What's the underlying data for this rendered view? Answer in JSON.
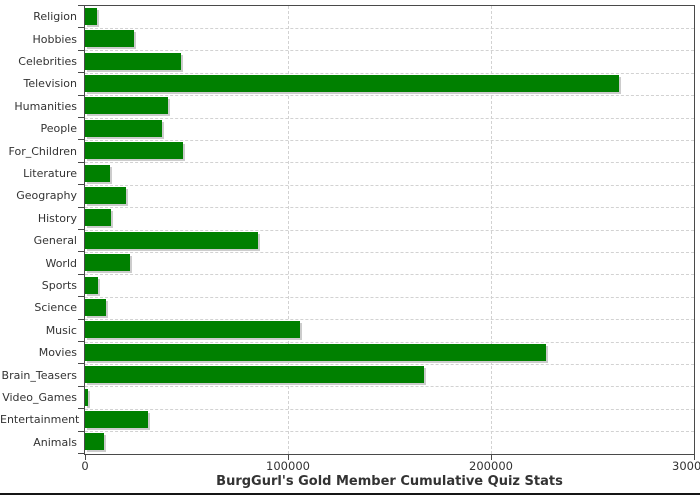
{
  "chart_data": {
    "type": "bar",
    "orientation": "horizontal",
    "title": "BurgGurl's Gold Member Cumulative Quiz Stats",
    "categories": [
      "Religion",
      "Hobbies",
      "Celebrities",
      "Television",
      "Humanities",
      "People",
      "For_Children",
      "Literature",
      "Geography",
      "History",
      "General",
      "World",
      "Sports",
      "Science",
      "Music",
      "Movies",
      "Brain_Teasers",
      "Video_Games",
      "Entertainment",
      "Animals"
    ],
    "values": [
      6000,
      24300,
      47500,
      263000,
      41000,
      38000,
      48500,
      12300,
      20000,
      13000,
      85000,
      22000,
      6200,
      10200,
      106000,
      227000,
      167000,
      1600,
      31000,
      9400
    ],
    "xlim": [
      0,
      300000
    ],
    "x_ticks": [
      0,
      100000,
      200000,
      300000
    ],
    "x_tick_labels": [
      "0",
      "100000",
      "200000",
      "300000"
    ],
    "grid_style": "dashed",
    "legend": "none",
    "colors": {
      "bar": "#008000",
      "bar_shadow": "#cccccc",
      "gridline": "#d2d2d2",
      "axis": "#4a4a4a",
      "text": "#333333",
      "background": "#ffffff"
    }
  }
}
